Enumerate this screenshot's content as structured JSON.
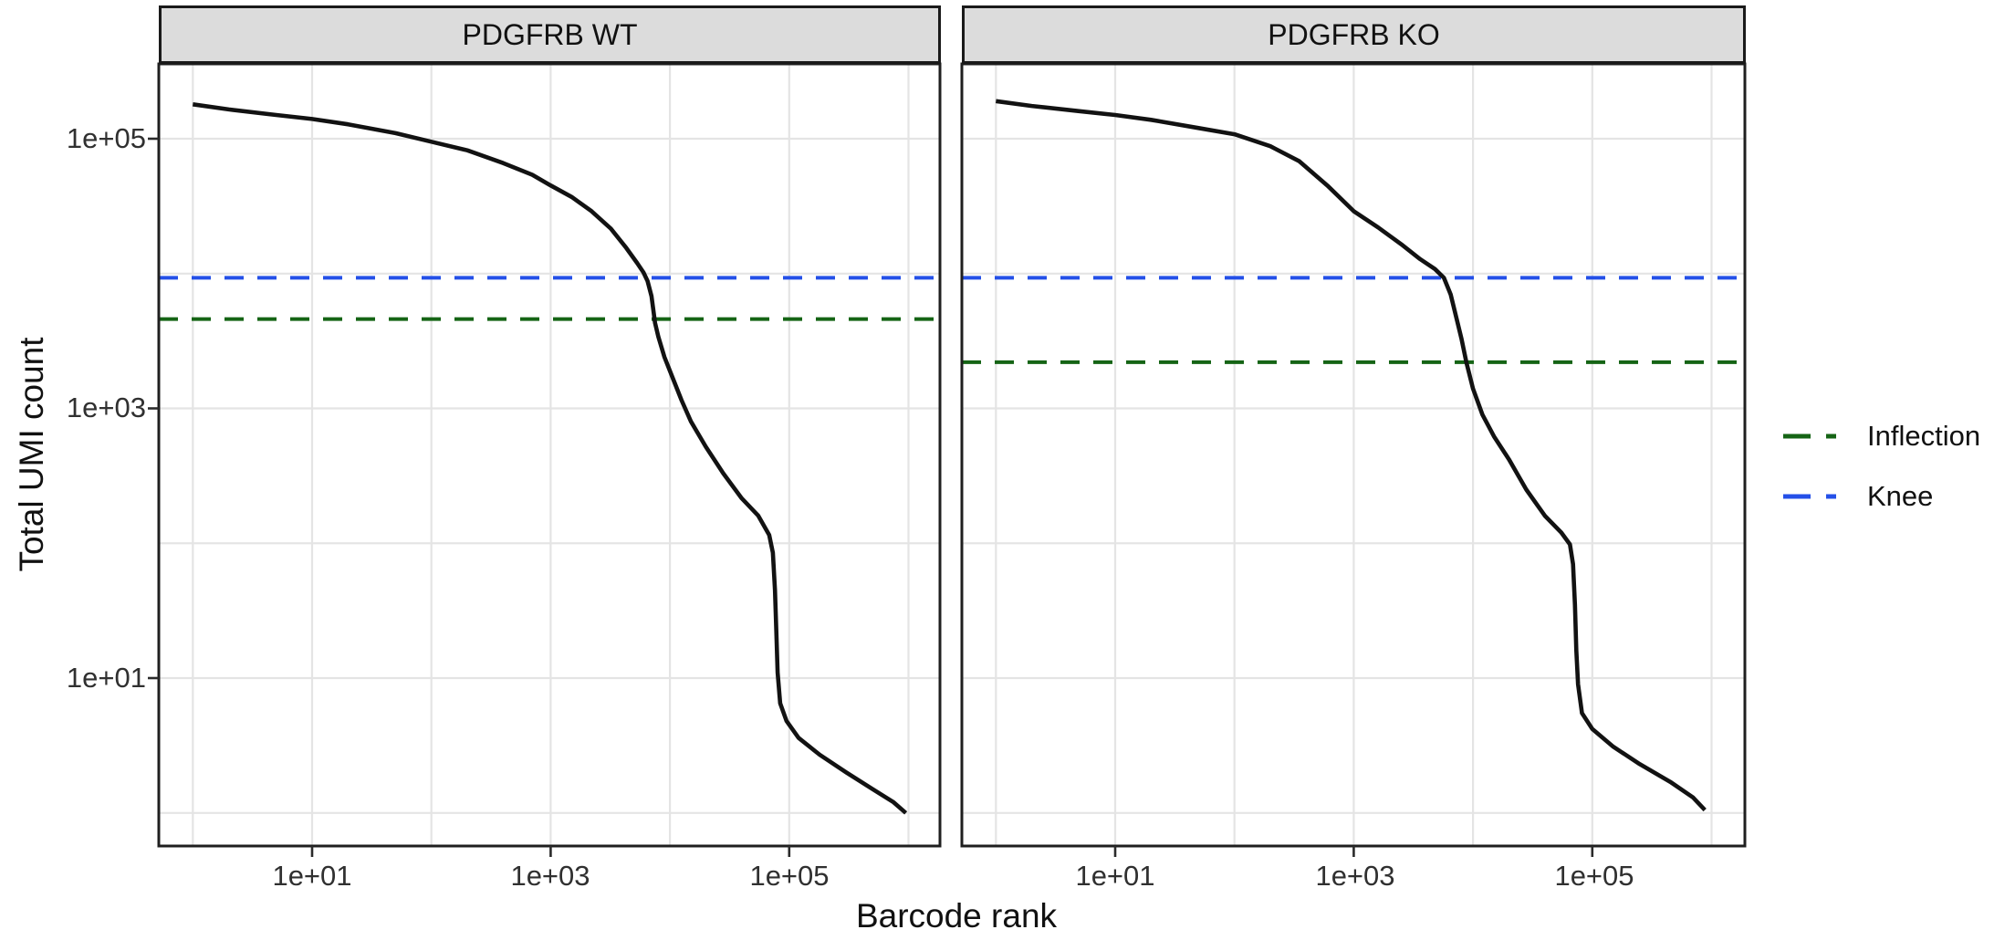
{
  "figure": {
    "kind": "faceted barcode-rank (knee) plot, ggplot theme_bw style"
  },
  "legend": {
    "items": [
      {
        "label": "Inflection",
        "color": "#156415"
      },
      {
        "label": "Knee",
        "color": "#2450e8"
      }
    ]
  },
  "chart_data": {
    "type": "line",
    "x_scale": "log10",
    "y_scale": "log10",
    "xlabel": "Barcode rank",
    "ylabel": "Total UMI count",
    "x_ticks": [
      10,
      1000,
      100000
    ],
    "x_tick_labels": [
      "1e+01",
      "1e+03",
      "1e+05"
    ],
    "y_ticks": [
      100000,
      1000,
      10
    ],
    "y_tick_labels": [
      "1e+05",
      "1e+03",
      "1e+01"
    ],
    "x_range": [
      0.53,
      1830000
    ],
    "y_range": [
      0.57,
      360000
    ],
    "grid": "major decades, light grey",
    "legend_position": "right",
    "colors": {
      "knee": "#2450e8",
      "inflection": "#156415",
      "curve": "#121212"
    },
    "panels": [
      {
        "title": "PDGFRB WT",
        "knee": 9300,
        "inflection": 4600,
        "series_name": "Total UMI count vs barcode rank",
        "series": [
          [
            1,
            180000
          ],
          [
            2,
            165000
          ],
          [
            5,
            150000
          ],
          [
            10,
            140000
          ],
          [
            20,
            128000
          ],
          [
            50,
            110000
          ],
          [
            100,
            95000
          ],
          [
            200,
            82000
          ],
          [
            400,
            66000
          ],
          [
            700,
            54000
          ],
          [
            1000,
            45000
          ],
          [
            1500,
            37000
          ],
          [
            2200,
            29000
          ],
          [
            3200,
            21500
          ],
          [
            4300,
            15500
          ],
          [
            5300,
            12000
          ],
          [
            6000,
            10200
          ],
          [
            6500,
            8800
          ],
          [
            7000,
            6800
          ],
          [
            7500,
            4300
          ],
          [
            8000,
            3400
          ],
          [
            9000,
            2400
          ],
          [
            10500,
            1700
          ],
          [
            12500,
            1150
          ],
          [
            15000,
            800
          ],
          [
            20000,
            520
          ],
          [
            28000,
            330
          ],
          [
            40000,
            215
          ],
          [
            55000,
            160
          ],
          [
            68000,
            115
          ],
          [
            73000,
            85
          ],
          [
            76000,
            45
          ],
          [
            78000,
            22
          ],
          [
            80000,
            11
          ],
          [
            84000,
            6.5
          ],
          [
            95000,
            4.8
          ],
          [
            120000,
            3.6
          ],
          [
            180000,
            2.7
          ],
          [
            300000,
            2.0
          ],
          [
            500000,
            1.5
          ],
          [
            750000,
            1.2
          ],
          [
            950000,
            1.0
          ]
        ]
      },
      {
        "title": "PDGFRB KO",
        "knee": 9300,
        "inflection": 2200,
        "series_name": "Total UMI count vs barcode rank",
        "series": [
          [
            1,
            190000
          ],
          [
            2,
            175000
          ],
          [
            5,
            160000
          ],
          [
            10,
            150000
          ],
          [
            20,
            138000
          ],
          [
            50,
            120000
          ],
          [
            100,
            108000
          ],
          [
            200,
            88000
          ],
          [
            350,
            68000
          ],
          [
            600,
            45000
          ],
          [
            1000,
            29000
          ],
          [
            1600,
            22000
          ],
          [
            2500,
            16500
          ],
          [
            3600,
            12800
          ],
          [
            4800,
            10800
          ],
          [
            5700,
            9300
          ],
          [
            6500,
            7000
          ],
          [
            7300,
            4600
          ],
          [
            8000,
            3300
          ],
          [
            8800,
            2200
          ],
          [
            10000,
            1400
          ],
          [
            12000,
            900
          ],
          [
            15000,
            620
          ],
          [
            20000,
            420
          ],
          [
            28000,
            250
          ],
          [
            40000,
            160
          ],
          [
            55000,
            120
          ],
          [
            65000,
            98
          ],
          [
            69000,
            70
          ],
          [
            71500,
            35
          ],
          [
            73500,
            16
          ],
          [
            76000,
            9
          ],
          [
            82000,
            5.5
          ],
          [
            100000,
            4.2
          ],
          [
            150000,
            3.1
          ],
          [
            250000,
            2.3
          ],
          [
            450000,
            1.7
          ],
          [
            700000,
            1.3
          ],
          [
            880000,
            1.05
          ]
        ]
      }
    ]
  }
}
